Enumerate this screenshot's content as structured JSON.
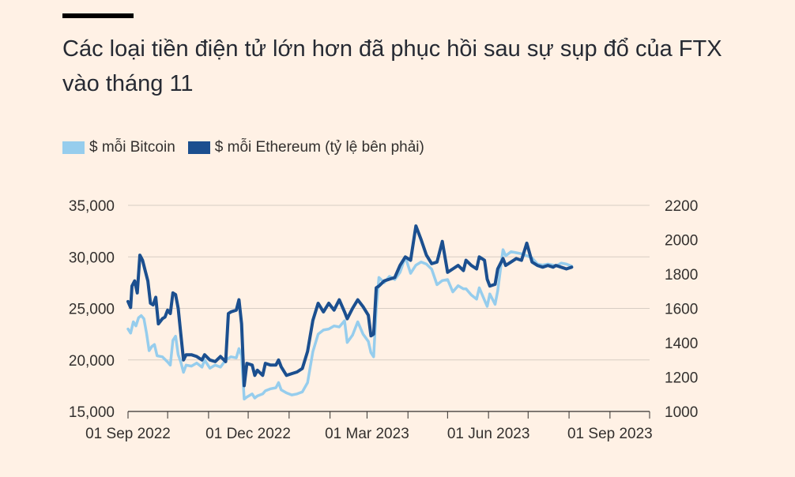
{
  "title": "Các loại tiền điện tử lớn hơn đã phục hồi sau sự sụp đổ của FTX vào tháng 11",
  "chart_data": {
    "type": "line",
    "title": "Các loại tiền điện tử lớn hơn đã phục hồi sau sự sụp đổ của FTX vào tháng 11",
    "legend": [
      {
        "name": "$ mỗi Bitcoin",
        "color": "#96cded"
      },
      {
        "name": "$ mỗi Ethereum (tỷ lệ bên phải)",
        "color": "#1b4f8f"
      }
    ],
    "x_ticks": [
      "01 Sep 2022",
      "01 Dec 2022",
      "01 Mar 2023",
      "01 Jun 2023",
      "01 Sep 2023"
    ],
    "x_tick_days": [
      0,
      91,
      181,
      273,
      365
    ],
    "xlim": [
      0,
      395
    ],
    "y_left": {
      "ticks": [
        "35,000",
        "30,000",
        "25,000",
        "20,000",
        "15,000"
      ],
      "values": [
        35000,
        30000,
        25000,
        20000,
        15000
      ],
      "lim": [
        15000,
        35000
      ]
    },
    "y_right": {
      "ticks": [
        "2200",
        "2000",
        "1800",
        "1600",
        "1400",
        "1200",
        "1000"
      ],
      "values": [
        2200,
        2000,
        1800,
        1600,
        1400,
        1200,
        1000
      ],
      "lim": [
        1000,
        2200
      ]
    },
    "series": [
      {
        "name": "$ mỗi Bitcoin",
        "axis": "left",
        "color": "#96cded",
        "points": [
          [
            0,
            23000
          ],
          [
            2,
            22600
          ],
          [
            4,
            23700
          ],
          [
            6,
            23300
          ],
          [
            8,
            24100
          ],
          [
            10,
            24300
          ],
          [
            12,
            24000
          ],
          [
            14,
            22600
          ],
          [
            16,
            20900
          ],
          [
            18,
            21300
          ],
          [
            20,
            21500
          ],
          [
            22,
            20400
          ],
          [
            26,
            20300
          ],
          [
            30,
            19800
          ],
          [
            32,
            19500
          ],
          [
            34,
            21900
          ],
          [
            36,
            22300
          ],
          [
            38,
            20500
          ],
          [
            40,
            19800
          ],
          [
            42,
            18800
          ],
          [
            44,
            19500
          ],
          [
            48,
            19400
          ],
          [
            52,
            19700
          ],
          [
            56,
            19300
          ],
          [
            58,
            20000
          ],
          [
            62,
            19200
          ],
          [
            66,
            19500
          ],
          [
            70,
            19300
          ],
          [
            74,
            20000
          ],
          [
            78,
            20300
          ],
          [
            82,
            20200
          ],
          [
            84,
            21100
          ],
          [
            86,
            20400
          ],
          [
            88,
            16200
          ],
          [
            90,
            16400
          ],
          [
            94,
            16700
          ],
          [
            96,
            16300
          ],
          [
            98,
            16500
          ],
          [
            102,
            16700
          ],
          [
            104,
            17000
          ],
          [
            108,
            17200
          ],
          [
            112,
            17300
          ],
          [
            114,
            17800
          ],
          [
            116,
            17100
          ],
          [
            120,
            16800
          ],
          [
            124,
            16600
          ],
          [
            128,
            16700
          ],
          [
            132,
            16900
          ],
          [
            136,
            17800
          ],
          [
            140,
            20800
          ],
          [
            144,
            22500
          ],
          [
            148,
            22900
          ],
          [
            152,
            23000
          ],
          [
            156,
            23300
          ],
          [
            160,
            23200
          ],
          [
            164,
            23800
          ],
          [
            166,
            21700
          ],
          [
            170,
            22400
          ],
          [
            174,
            23700
          ],
          [
            178,
            22500
          ],
          [
            182,
            21800
          ],
          [
            184,
            20700
          ],
          [
            186,
            20300
          ],
          [
            188,
            25000
          ],
          [
            190,
            28000
          ],
          [
            194,
            27500
          ],
          [
            198,
            28100
          ],
          [
            202,
            27800
          ],
          [
            206,
            28500
          ],
          [
            210,
            30000
          ],
          [
            214,
            28400
          ],
          [
            218,
            29200
          ],
          [
            222,
            29500
          ],
          [
            226,
            29300
          ],
          [
            230,
            28800
          ],
          [
            234,
            27300
          ],
          [
            238,
            27700
          ],
          [
            242,
            27800
          ],
          [
            246,
            26600
          ],
          [
            250,
            27200
          ],
          [
            254,
            26900
          ],
          [
            256,
            26900
          ],
          [
            260,
            26300
          ],
          [
            264,
            25900
          ],
          [
            266,
            27000
          ],
          [
            270,
            25800
          ],
          [
            272,
            25200
          ],
          [
            274,
            26400
          ],
          [
            278,
            25400
          ],
          [
            280,
            26700
          ],
          [
            284,
            30700
          ],
          [
            286,
            30100
          ],
          [
            290,
            30500
          ],
          [
            294,
            30400
          ],
          [
            298,
            30300
          ],
          [
            302,
            30100
          ],
          [
            306,
            29900
          ],
          [
            310,
            29300
          ],
          [
            314,
            29200
          ],
          [
            318,
            29300
          ],
          [
            322,
            29200
          ],
          [
            324,
            29100
          ],
          [
            328,
            29400
          ],
          [
            332,
            29300
          ],
          [
            336,
            29100
          ]
        ]
      },
      {
        "name": "$ mỗi Ethereum (tỷ lệ bên phải)",
        "axis": "right",
        "color": "#1b4f8f",
        "points": [
          [
            0,
            1640
          ],
          [
            2,
            1605
          ],
          [
            3,
            1730
          ],
          [
            5,
            1760
          ],
          [
            7,
            1690
          ],
          [
            9,
            1910
          ],
          [
            11,
            1880
          ],
          [
            13,
            1820
          ],
          [
            15,
            1760
          ],
          [
            17,
            1630
          ],
          [
            19,
            1620
          ],
          [
            21,
            1665
          ],
          [
            23,
            1510
          ],
          [
            26,
            1540
          ],
          [
            28,
            1550
          ],
          [
            30,
            1590
          ],
          [
            32,
            1570
          ],
          [
            34,
            1690
          ],
          [
            36,
            1680
          ],
          [
            38,
            1600
          ],
          [
            40,
            1450
          ],
          [
            42,
            1300
          ],
          [
            44,
            1330
          ],
          [
            48,
            1330
          ],
          [
            52,
            1320
          ],
          [
            56,
            1300
          ],
          [
            58,
            1330
          ],
          [
            62,
            1300
          ],
          [
            66,
            1290
          ],
          [
            70,
            1320
          ],
          [
            74,
            1290
          ],
          [
            76,
            1570
          ],
          [
            78,
            1580
          ],
          [
            82,
            1590
          ],
          [
            84,
            1650
          ],
          [
            86,
            1510
          ],
          [
            88,
            1150
          ],
          [
            90,
            1280
          ],
          [
            94,
            1270
          ],
          [
            96,
            1210
          ],
          [
            98,
            1240
          ],
          [
            102,
            1210
          ],
          [
            104,
            1280
          ],
          [
            108,
            1270
          ],
          [
            112,
            1270
          ],
          [
            114,
            1300
          ],
          [
            116,
            1260
          ],
          [
            120,
            1210
          ],
          [
            124,
            1220
          ],
          [
            128,
            1230
          ],
          [
            132,
            1250
          ],
          [
            136,
            1350
          ],
          [
            140,
            1530
          ],
          [
            144,
            1630
          ],
          [
            148,
            1580
          ],
          [
            152,
            1630
          ],
          [
            156,
            1590
          ],
          [
            160,
            1650
          ],
          [
            164,
            1580
          ],
          [
            166,
            1540
          ],
          [
            170,
            1600
          ],
          [
            174,
            1650
          ],
          [
            178,
            1610
          ],
          [
            182,
            1560
          ],
          [
            184,
            1440
          ],
          [
            186,
            1450
          ],
          [
            188,
            1720
          ],
          [
            190,
            1730
          ],
          [
            194,
            1760
          ],
          [
            198,
            1770
          ],
          [
            202,
            1780
          ],
          [
            206,
            1850
          ],
          [
            210,
            1900
          ],
          [
            214,
            1880
          ],
          [
            218,
            2080
          ],
          [
            222,
            2000
          ],
          [
            226,
            1910
          ],
          [
            230,
            1860
          ],
          [
            234,
            1870
          ],
          [
            238,
            1990
          ],
          [
            242,
            1810
          ],
          [
            246,
            1830
          ],
          [
            250,
            1850
          ],
          [
            254,
            1820
          ],
          [
            256,
            1880
          ],
          [
            260,
            1850
          ],
          [
            264,
            1830
          ],
          [
            266,
            1900
          ],
          [
            270,
            1880
          ],
          [
            272,
            1770
          ],
          [
            274,
            1730
          ],
          [
            278,
            1740
          ],
          [
            280,
            1830
          ],
          [
            284,
            1890
          ],
          [
            286,
            1850
          ],
          [
            290,
            1870
          ],
          [
            294,
            1890
          ],
          [
            298,
            1880
          ],
          [
            302,
            1980
          ],
          [
            306,
            1870
          ],
          [
            310,
            1850
          ],
          [
            314,
            1840
          ],
          [
            318,
            1850
          ],
          [
            322,
            1840
          ],
          [
            324,
            1850
          ],
          [
            328,
            1840
          ],
          [
            332,
            1830
          ],
          [
            336,
            1840
          ]
        ]
      }
    ]
  }
}
